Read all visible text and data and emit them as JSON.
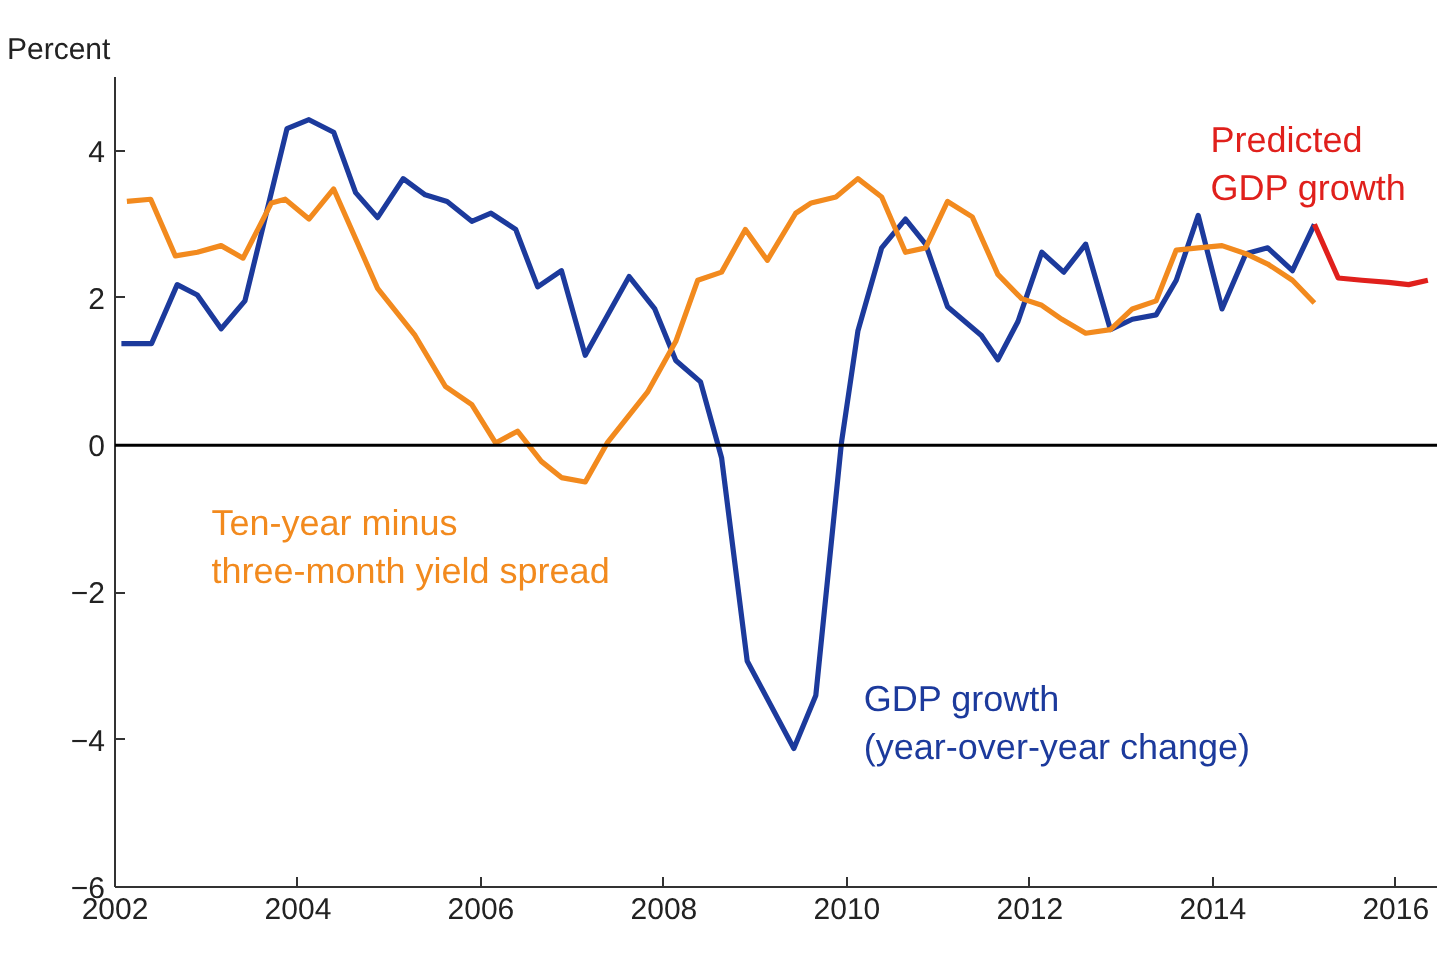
{
  "chart_data": {
    "type": "line",
    "ylabel": "Percent",
    "xlim": [
      2002,
      2016.45
    ],
    "ylim": [
      -6,
      5
    ],
    "xticks": [
      2002,
      2004,
      2006,
      2008,
      2010,
      2012,
      2014,
      2016
    ],
    "yticks": [
      -6,
      -4,
      -2,
      0,
      2,
      4
    ],
    "grid": false,
    "marker": "none",
    "line_style": "solid",
    "ref_lines": [
      {
        "axis": "y",
        "value": 0,
        "color": "#000000"
      }
    ],
    "series": [
      {
        "name": "GDP growth\n(year-over-year change)",
        "color": "#1c3a9c",
        "x": [
          2002.07,
          2002.4,
          2002.68,
          2002.9,
          2003.16,
          2003.42,
          2003.88,
          2004.12,
          2004.39,
          2004.63,
          2004.87,
          2005.15,
          2005.39,
          2005.63,
          2005.9,
          2006.11,
          2006.38,
          2006.62,
          2006.88,
          2007.14,
          2007.62,
          2007.9,
          2008.13,
          2008.4,
          2008.63,
          2008.91,
          2009.42,
          2009.66,
          2009.94,
          2010.12,
          2010.38,
          2010.64,
          2010.86,
          2011.1,
          2011.47,
          2011.65,
          2011.87,
          2012.13,
          2012.37,
          2012.61,
          2012.88,
          2013.12,
          2013.38,
          2013.6,
          2013.84,
          2014.1,
          2014.36,
          2014.6,
          2014.87,
          2015.11
        ],
        "values": [
          1.38,
          1.38,
          2.18,
          2.04,
          1.58,
          1.96,
          4.3,
          4.42,
          4.25,
          3.43,
          3.09,
          3.62,
          3.4,
          3.31,
          3.04,
          3.15,
          2.93,
          2.15,
          2.37,
          1.22,
          2.29,
          1.85,
          1.15,
          0.86,
          -0.17,
          -2.93,
          -4.12,
          -3.4,
          0.03,
          1.55,
          2.68,
          3.07,
          2.73,
          1.88,
          1.49,
          1.16,
          1.68,
          2.62,
          2.35,
          2.73,
          1.57,
          1.71,
          1.77,
          2.24,
          3.12,
          1.85,
          2.6,
          2.68,
          2.37,
          3.0
        ]
      },
      {
        "name": "Ten-year minus\nthree-month yield spread",
        "color": "#f28a1e",
        "x": [
          2002.13,
          2002.39,
          2002.66,
          2002.9,
          2003.16,
          2003.4,
          2003.71,
          2003.86,
          2004.12,
          2004.39,
          2004.87,
          2005.28,
          2005.61,
          2005.9,
          2006.16,
          2006.4,
          2006.66,
          2006.88,
          2007.14,
          2007.38,
          2007.82,
          2008.13,
          2008.37,
          2008.63,
          2008.89,
          2009.13,
          2009.44,
          2009.61,
          2009.88,
          2010.12,
          2010.38,
          2010.64,
          2010.86,
          2011.1,
          2011.37,
          2011.65,
          2011.91,
          2012.13,
          2012.35,
          2012.61,
          2012.88,
          2013.12,
          2013.38,
          2013.6,
          2013.84,
          2014.1,
          2014.36,
          2014.6,
          2014.87,
          2015.11
        ],
        "values": [
          3.31,
          3.34,
          2.57,
          2.62,
          2.71,
          2.54,
          3.29,
          3.34,
          3.07,
          3.48,
          2.13,
          1.49,
          0.8,
          0.55,
          0.03,
          0.19,
          -0.22,
          -0.44,
          -0.5,
          0.03,
          0.72,
          1.41,
          2.24,
          2.35,
          2.93,
          2.51,
          3.15,
          3.29,
          3.37,
          3.62,
          3.37,
          2.62,
          2.68,
          3.31,
          3.1,
          2.32,
          1.99,
          1.9,
          1.71,
          1.52,
          1.57,
          1.85,
          1.96,
          2.65,
          2.68,
          2.71,
          2.6,
          2.46,
          2.24,
          1.93
        ]
      },
      {
        "name": "Predicted\nGDP growth",
        "color": "#e0201c",
        "x": [
          2015.11,
          2015.37,
          2015.63,
          2015.92,
          2016.14,
          2016.35
        ],
        "values": [
          3.0,
          2.27,
          2.24,
          2.21,
          2.18,
          2.24
        ]
      }
    ]
  }
}
